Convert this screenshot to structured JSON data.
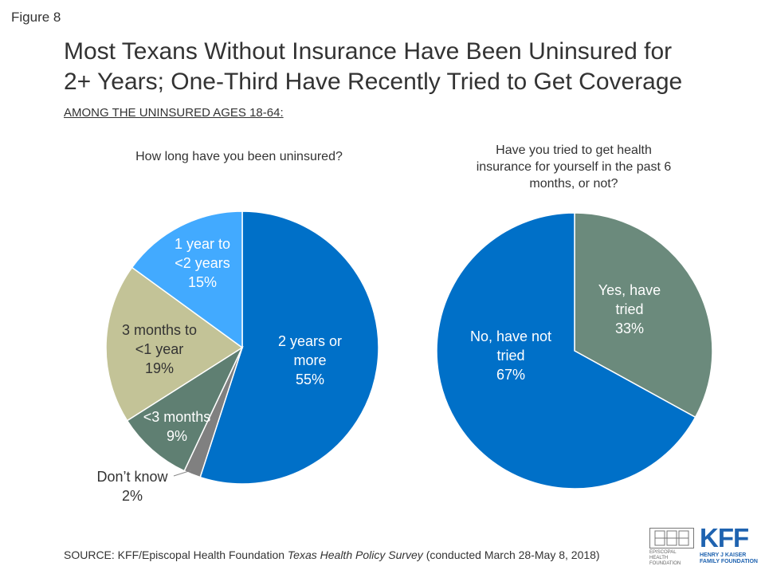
{
  "figure_label": "Figure 8",
  "title_line1": "Most Texans Without Insurance Have Been Uninsured for",
  "title_line2": "2+ Years; One-Third Have Recently Tried to Get Coverage",
  "subtitle": "AMONG THE UNINSURED AGES 18-64:",
  "source_prefix": "SOURCE: KFF/Episcopal Health Foundation ",
  "source_italic": "Texas Health Policy Survey",
  "source_suffix": " (conducted March 28-May 8, 2018)",
  "logos": {
    "ehf_text": "EPISCOPAL HEALTH FOUNDATION",
    "kff_mark": "KFF",
    "kff_text_line1": "HENRY J KAISER",
    "kff_text_line2": "FAMILY FOUNDATION"
  },
  "chart_data": [
    {
      "type": "pie",
      "question": "How long have you been uninsured?",
      "slices": [
        {
          "label": [
            "2 years or",
            "more"
          ],
          "value": 55,
          "display": "55%",
          "color": "#0070c8",
          "text_color": "#ffffff"
        },
        {
          "label": [
            "Don’t know"
          ],
          "value": 2,
          "display": "2%",
          "color": "#808080",
          "text_color": "#333333"
        },
        {
          "label": [
            "<3 months"
          ],
          "value": 9,
          "display": "9%",
          "color": "#5f7f72",
          "text_color": "#ffffff"
        },
        {
          "label": [
            "3 months  to",
            "<1 year"
          ],
          "value": 19,
          "display": "19%",
          "color": "#c3c397",
          "text_color": "#333333"
        },
        {
          "label": [
            "1 year to",
            "<2 years"
          ],
          "value": 15,
          "display": "15%",
          "color": "#42aaff",
          "text_color": "#ffffff"
        }
      ]
    },
    {
      "type": "pie",
      "question": "Have you tried to get health insurance for yourself in the past 6 months, or not?",
      "question_lines": [
        "Have you tried to get health",
        "insurance for yourself in the past 6",
        "months, or not?"
      ],
      "slices": [
        {
          "label": [
            "Yes, have",
            "tried"
          ],
          "value": 33,
          "display": "33%",
          "color": "#6b8a7c",
          "text_color": "#ffffff"
        },
        {
          "label": [
            "No, have not",
            "tried"
          ],
          "value": 67,
          "display": "67%",
          "color": "#0070c8",
          "text_color": "#ffffff"
        }
      ]
    }
  ]
}
